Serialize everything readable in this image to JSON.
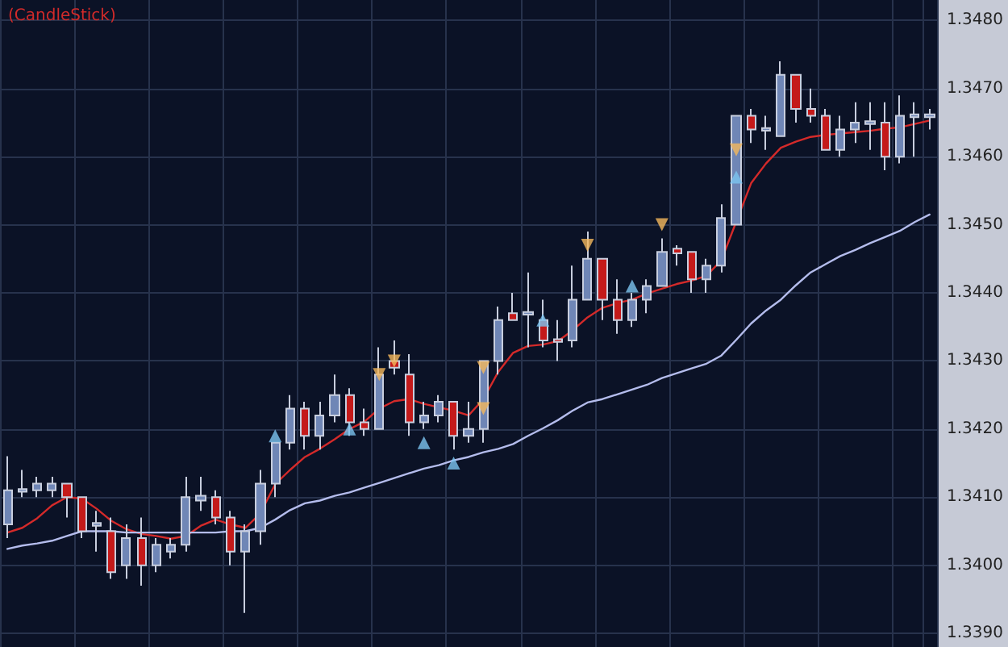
{
  "chart_data": {
    "type": "candlestick",
    "title": "(CandleStick)",
    "categories": [
      null,
      null,
      null,
      null,
      null,
      null,
      null,
      null,
      null,
      null,
      null,
      null,
      null,
      null,
      null,
      null,
      null,
      null,
      null,
      null,
      null,
      null,
      null,
      null,
      null,
      null,
      null,
      null,
      null,
      null,
      null,
      null,
      null,
      null,
      null,
      null,
      null,
      null,
      null,
      null,
      null,
      null,
      null,
      null,
      null,
      null,
      null,
      null,
      null,
      null,
      null,
      null,
      null,
      null,
      null,
      null,
      null,
      null,
      null,
      null,
      null,
      null,
      null
    ],
    "colors": [
      "#6f86b6",
      "#6f86b6",
      "#6f86b6",
      "#6f86b6",
      "#c41a1a",
      "#c41a1a",
      "#6f86b6",
      "#c41a1a",
      "#6f86b6",
      "#c41a1a",
      "#6f86b6",
      "#6f86b6",
      "#6f86b6",
      "#6f86b6",
      "#c41a1a",
      "#c41a1a",
      "#6f86b6",
      "#6f86b6",
      "#6f86b6",
      "#6f86b6",
      "#c41a1a",
      "#6f86b6",
      "#6f86b6",
      "#c41a1a",
      "#c41a1a",
      "#6f86b6",
      "#c41a1a",
      "#c41a1a",
      "#6f86b6",
      "#6f86b6",
      "#c41a1a",
      "#6f86b6",
      "#6f86b6",
      "#6f86b6",
      "#c41a1a",
      "#6f86b6",
      "#c41a1a",
      "#c41a1a",
      "#6f86b6",
      "#6f86b6",
      "#c41a1a",
      "#c41a1a",
      "#6f86b6",
      "#6f86b6",
      "#6f86b6",
      "#c41a1a",
      "#c41a1a",
      "#6f86b6",
      "#6f86b6",
      "#6f86b6",
      "#c41a1a",
      "#6f86b6",
      "#6f86b6",
      "#c41a1a",
      "#c41a1a",
      "#c41a1a",
      "#6f86b6",
      "#6f86b6",
      "#6f86b6",
      "#c41a1a",
      "#6f86b6",
      "#6f86b6",
      "#6f86b6"
    ],
    "ohlc": [
      [
        1.3406,
        1.3416,
        1.3404,
        1.3411
      ],
      [
        1.34108,
        1.3414,
        1.341,
        1.34112
      ],
      [
        1.3411,
        1.3413,
        1.341,
        1.3412
      ],
      [
        1.3411,
        1.3413,
        1.341,
        1.3412
      ],
      [
        1.3412,
        1.3412,
        1.3407,
        1.341
      ],
      [
        1.341,
        1.341,
        1.3404,
        1.3405
      ],
      [
        1.34058,
        1.3408,
        1.3402,
        1.34062
      ],
      [
        1.3405,
        1.3407,
        1.3398,
        1.3399
      ],
      [
        1.34,
        1.3406,
        1.3398,
        1.3404
      ],
      [
        1.3404,
        1.3407,
        1.3397,
        1.34
      ],
      [
        1.34,
        1.3404,
        1.3399,
        1.3403
      ],
      [
        1.3402,
        1.3404,
        1.3401,
        1.3403
      ],
      [
        1.3403,
        1.3413,
        1.3402,
        1.341
      ],
      [
        1.34095,
        1.3413,
        1.3408,
        1.34102
      ],
      [
        1.341,
        1.3411,
        1.3406,
        1.3407
      ],
      [
        1.3407,
        1.3408,
        1.34,
        1.3402
      ],
      [
        1.3402,
        1.3406,
        1.3393,
        1.3405
      ],
      [
        1.3405,
        1.3414,
        1.3403,
        1.3412
      ],
      [
        1.3412,
        1.3418,
        1.341,
        1.3418
      ],
      [
        1.3418,
        1.3425,
        1.3417,
        1.3423
      ],
      [
        1.3423,
        1.3424,
        1.3417,
        1.3419
      ],
      [
        1.3419,
        1.3424,
        1.3417,
        1.3422
      ],
      [
        1.3422,
        1.3428,
        1.3421,
        1.3425
      ],
      [
        1.3425,
        1.3426,
        1.3419,
        1.3421
      ],
      [
        1.3421,
        1.3423,
        1.3419,
        1.342
      ],
      [
        1.342,
        1.3432,
        1.342,
        1.3428
      ],
      [
        1.343,
        1.3433,
        1.3428,
        1.3429
      ],
      [
        1.3428,
        1.3431,
        1.3419,
        1.3421
      ],
      [
        1.3421,
        1.3424,
        1.342,
        1.3422
      ],
      [
        1.3422,
        1.3425,
        1.3421,
        1.3424
      ],
      [
        1.3424,
        1.3424,
        1.3417,
        1.3419
      ],
      [
        1.3419,
        1.3424,
        1.3418,
        1.342
      ],
      [
        1.342,
        1.343,
        1.3418,
        1.343
      ],
      [
        1.343,
        1.3438,
        1.3428,
        1.3436
      ],
      [
        1.3437,
        1.344,
        1.3436,
        1.3436
      ],
      [
        1.34368,
        1.3443,
        1.3432,
        1.34372
      ],
      [
        1.3436,
        1.3439,
        1.3432,
        1.3433
      ],
      [
        1.34332,
        1.3436,
        1.343,
        1.34328
      ],
      [
        1.3433,
        1.3444,
        1.3432,
        1.3439
      ],
      [
        1.3439,
        1.3449,
        1.3439,
        1.3445
      ],
      [
        1.3445,
        1.3445,
        1.3436,
        1.3439
      ],
      [
        1.3439,
        1.3442,
        1.3434,
        1.3436
      ],
      [
        1.3436,
        1.344,
        1.3435,
        1.3439
      ],
      [
        1.3439,
        1.3442,
        1.3437,
        1.3441
      ],
      [
        1.3441,
        1.3448,
        1.3441,
        1.3446
      ],
      [
        1.34465,
        1.3447,
        1.3444,
        1.34458
      ],
      [
        1.3446,
        1.3446,
        1.344,
        1.3442
      ],
      [
        1.3442,
        1.3445,
        1.344,
        1.3444
      ],
      [
        1.3444,
        1.3453,
        1.3443,
        1.3451
      ],
      [
        1.345,
        1.3466,
        1.345,
        1.3466
      ],
      [
        1.3466,
        1.3467,
        1.3462,
        1.3464
      ],
      [
        1.34638,
        1.3466,
        1.3461,
        1.34642
      ],
      [
        1.3463,
        1.3474,
        1.3463,
        1.3472
      ],
      [
        1.3472,
        1.3472,
        1.3465,
        1.3467
      ],
      [
        1.3467,
        1.347,
        1.3465,
        1.3466
      ],
      [
        1.3466,
        1.3467,
        1.3461,
        1.3461
      ],
      [
        1.3461,
        1.3466,
        1.346,
        1.3464
      ],
      [
        1.3464,
        1.3468,
        1.3462,
        1.3465
      ],
      [
        1.34648,
        1.3468,
        1.3461,
        1.34652
      ],
      [
        1.3465,
        1.3468,
        1.3458,
        1.346
      ],
      [
        1.346,
        1.3469,
        1.3459,
        1.3466
      ],
      [
        1.34658,
        1.3468,
        1.346,
        1.34662
      ],
      [
        1.34658,
        1.3467,
        1.3464,
        1.34662
      ]
    ],
    "series": [
      {
        "type": "line",
        "color": "#d42a2a",
        "marker": "none",
        "line_style": "solid",
        "values": [
          1.34048,
          1.34055,
          1.34069,
          1.34088,
          1.341,
          1.34098,
          1.34083,
          1.34065,
          1.34053,
          1.34046,
          1.34043,
          1.34039,
          1.34043,
          1.34058,
          1.34067,
          1.3406,
          1.34055,
          1.34076,
          1.34119,
          1.3414,
          1.34159,
          1.34171,
          1.34185,
          1.342,
          1.34211,
          1.3423,
          1.34241,
          1.34244,
          1.34237,
          1.34232,
          1.34227,
          1.3422,
          1.34244,
          1.34284,
          1.34312,
          1.34322,
          1.34324,
          1.34329,
          1.34345,
          1.34364,
          1.34378,
          1.34385,
          1.3439,
          1.34399,
          1.34406,
          1.34413,
          1.34418,
          1.34425,
          1.34448,
          null,
          1.34561,
          1.3459,
          1.34613,
          1.34622,
          1.34629,
          1.34632,
          1.34634,
          1.34636,
          1.34638,
          1.34641,
          1.34643,
          1.34648,
          1.34653
        ]
      },
      {
        "type": "line",
        "color": "#b4bcec",
        "marker": "none",
        "line_style": "solid",
        "values": [
          1.34024,
          1.34029,
          1.34032,
          1.34036,
          1.34043,
          1.3405,
          1.3405,
          1.3405,
          1.34048,
          1.34048,
          1.34048,
          1.34048,
          1.34048,
          1.34048,
          1.34048,
          1.3405,
          1.3405,
          1.34055,
          1.34067,
          1.34081,
          1.34091,
          1.34095,
          1.34102,
          1.34107,
          1.34114,
          1.34121,
          1.34128,
          1.34135,
          1.34142,
          1.34147,
          1.34154,
          1.34159,
          1.34166,
          1.34171,
          1.34178,
          1.3419,
          1.34201,
          1.34213,
          1.34227,
          1.34239,
          1.34244,
          1.34251,
          1.34258,
          1.34265,
          1.34275,
          1.34282,
          1.34289,
          1.34296,
          1.34308,
          1.34331,
          1.34355,
          1.34374,
          1.3439,
          1.34411,
          1.3443,
          1.34442,
          1.34454,
          1.34463,
          1.34473,
          1.34482,
          1.34491,
          1.34504,
          1.34515
        ]
      },
      {
        "type": "scatter",
        "color": "#7cc4f0",
        "marker": "triangle",
        "values": [
          null,
          null,
          null,
          null,
          null,
          null,
          null,
          null,
          null,
          null,
          null,
          null,
          null,
          null,
          null,
          null,
          null,
          null,
          1.3419,
          null,
          null,
          null,
          null,
          1.342,
          null,
          null,
          null,
          null,
          1.3418,
          null,
          1.3415,
          null,
          null,
          null,
          null,
          null,
          1.3436,
          null,
          null,
          null,
          null,
          null,
          1.3441,
          null,
          null,
          null,
          null,
          null,
          null,
          1.3457,
          null,
          null,
          null,
          null,
          null,
          null,
          null,
          null,
          null,
          null,
          null,
          null,
          null
        ]
      },
      {
        "type": "scatter",
        "color": "#f4b85c",
        "marker": "triangle-down",
        "values": [
          null,
          null,
          null,
          null,
          null,
          null,
          null,
          null,
          null,
          null,
          null,
          null,
          null,
          null,
          null,
          null,
          null,
          null,
          null,
          null,
          null,
          null,
          null,
          null,
          null,
          1.3428,
          1.343,
          null,
          null,
          null,
          null,
          null,
          1.3429,
          null,
          null,
          null,
          null,
          null,
          null,
          1.3447,
          null,
          null,
          null,
          null,
          1.345,
          null,
          null,
          null,
          null,
          1.3461,
          null,
          null,
          null,
          null,
          null,
          null,
          null,
          null,
          null,
          null,
          null,
          null,
          null
        ]
      },
      {
        "type": "scatter",
        "color": "#f4b85c",
        "marker": "triangle-down",
        "values": [
          null,
          null,
          null,
          null,
          null,
          null,
          null,
          null,
          null,
          null,
          null,
          null,
          null,
          null,
          null,
          null,
          null,
          null,
          null,
          null,
          null,
          null,
          null,
          null,
          null,
          null,
          null,
          null,
          null,
          null,
          null,
          null,
          1.3423,
          null,
          null,
          null,
          null,
          null,
          null,
          null,
          null,
          null,
          null,
          null,
          null,
          null,
          null,
          null,
          null,
          null,
          null,
          null,
          null,
          null,
          null,
          null,
          null,
          null,
          null,
          null,
          null,
          null,
          null
        ]
      }
    ],
    "ylim": [
      1.3388,
      1.3483
    ],
    "yticks": [
      {
        "value": 1.339,
        "label": "1.3390"
      },
      {
        "value": 1.34,
        "label": "1.3400"
      },
      {
        "value": 1.341,
        "label": "1.3410"
      },
      {
        "value": 1.342,
        "label": "1.3420"
      },
      {
        "value": 1.343,
        "label": "1.3430"
      },
      {
        "value": 1.344,
        "label": "1.3440"
      },
      {
        "value": 1.345,
        "label": "1.3450"
      },
      {
        "value": 1.346,
        "label": "1.3460"
      },
      {
        "value": 1.347,
        "label": "1.3470"
      },
      {
        "value": 1.348,
        "label": "1.3480"
      }
    ],
    "grid": true,
    "tick_labels": "y"
  }
}
